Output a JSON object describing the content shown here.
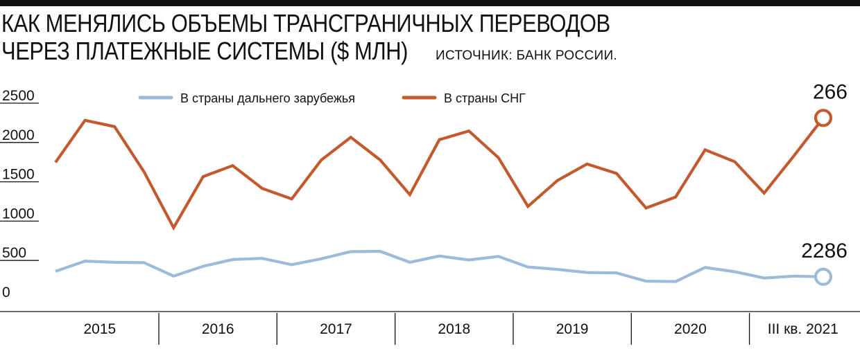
{
  "header": {
    "title_line1": "КАК МЕНЯЛИСЬ ОБЪЕМЫ ТРАНСГРАНИЧНЫХ ПЕРЕВОДОВ",
    "title_line2": "ЧЕРЕЗ ПЛАТЕЖНЫЕ СИСТЕМЫ ($ МЛН)",
    "source": "ИСТОЧНИК: БАНК РОССИИ."
  },
  "chart_data": {
    "type": "line",
    "title": "КАК МЕНЯЛИСЬ ОБЪЕМЫ ТРАНСГРАНИЧНЫХ ПЕРЕВОДОВ ЧЕРЕЗ ПЛАТЕЖНЫЕ СИСТЕМЫ ($ МЛН)",
    "ylim": [
      0,
      2500
    ],
    "yticks": [
      "2500",
      "2000",
      "1500",
      "1000",
      "500",
      "0"
    ],
    "grid": false,
    "legend_position": "top",
    "periods": [
      "2015",
      "2016",
      "2017",
      "2018",
      "2019",
      "2020",
      "III кв. 2021"
    ],
    "points_per_period": [
      4,
      4,
      4,
      4,
      4,
      4,
      3
    ],
    "series": [
      {
        "name": "В страны дальнего зарубежья",
        "color": "#9dbbd8",
        "values": [
          335,
          465,
          450,
          445,
          275,
          400,
          485,
          500,
          420,
          495,
          585,
          590,
          450,
          530,
          480,
          525,
          390,
          360,
          320,
          315,
          210,
          205,
          385,
          330,
          250,
          275,
          266
        ]
      },
      {
        "name": "В страны СНГ",
        "color": "#c25a2e",
        "values": [
          1720,
          2255,
          2175,
          1600,
          890,
          1540,
          1680,
          1390,
          1255,
          1750,
          2040,
          1750,
          1310,
          2010,
          2120,
          1780,
          1160,
          1490,
          1700,
          1580,
          1140,
          1280,
          1880,
          1730,
          1330,
          1800,
          2286
        ]
      }
    ],
    "annotations": [
      "2286",
      "266"
    ]
  }
}
